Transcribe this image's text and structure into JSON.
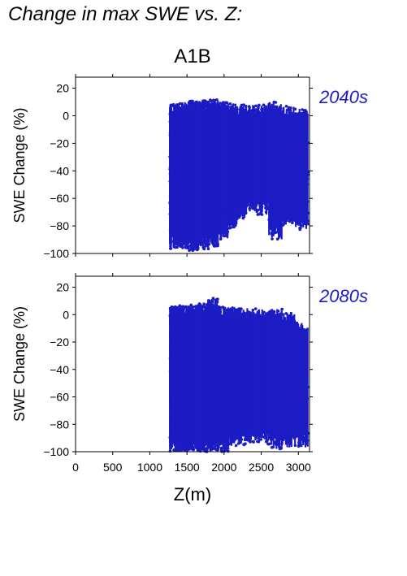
{
  "page": {
    "title": "Change in max SWE vs. Z:",
    "scenario": "A1B"
  },
  "colors": {
    "points": "#1c1cc4",
    "axes": "#000000",
    "period_label": "#1c1cc4"
  },
  "chart_data": [
    {
      "type": "scatter",
      "panel_label": "2040s",
      "ylabel": "SWE Change (%)",
      "xlabel": "",
      "xlim": [
        0,
        3150
      ],
      "ylim": [
        -100,
        28
      ],
      "yticks": [
        20,
        0,
        -20,
        -40,
        -60,
        -80,
        -100
      ],
      "ytick_labels": [
        "20",
        "0",
        "−20",
        "−40",
        "−60",
        "−80",
        "−100"
      ],
      "xticks": [
        0,
        500,
        1000,
        1500,
        2000,
        2500,
        3000
      ],
      "xtick_labels": [],
      "grid": false,
      "series": [
        {
          "columns": [
            {
              "x_range": [
                1270,
                1290
              ],
              "y_range": [
                -97,
                8
              ],
              "n": 70
            },
            {
              "x_range": [
                1310,
                1420
              ],
              "y_range": [
                -96,
                9
              ],
              "n": 260
            },
            {
              "x_range": [
                1420,
                1520
              ],
              "y_range": [
                -96,
                10
              ],
              "n": 260
            },
            {
              "x_range": [
                1520,
                1640
              ],
              "y_range": [
                -98,
                11
              ],
              "n": 320
            },
            {
              "x_range": [
                1640,
                1790
              ],
              "y_range": [
                -97,
                11
              ],
              "n": 360
            },
            {
              "x_range": [
                1790,
                1920
              ],
              "y_range": [
                -95,
                12
              ],
              "n": 300
            },
            {
              "x_range": [
                1920,
                2050
              ],
              "y_range": [
                -90,
                10
              ],
              "n": 200
            },
            {
              "x_range": [
                2050,
                2170
              ],
              "y_range": [
                -82,
                9
              ],
              "n": 140
            },
            {
              "x_range": [
                2170,
                2300
              ],
              "y_range": [
                -75,
                8
              ],
              "n": 120
            },
            {
              "x_range": [
                2300,
                2450
              ],
              "y_range": [
                -70,
                8
              ],
              "n": 110
            },
            {
              "x_range": [
                2450,
                2600
              ],
              "y_range": [
                -72,
                8
              ],
              "n": 110
            },
            {
              "x_range": [
                2600,
                2780
              ],
              "y_range": [
                -90,
                10
              ],
              "n": 120
            },
            {
              "x_range": [
                2780,
                2950
              ],
              "y_range": [
                -80,
                7
              ],
              "n": 110
            },
            {
              "x_range": [
                2950,
                3130
              ],
              "y_range": [
                -83,
                5
              ],
              "n": 110
            }
          ]
        }
      ]
    },
    {
      "type": "scatter",
      "panel_label": "2080s",
      "ylabel": "SWE Change (%)",
      "xlabel": "Z(m)",
      "xlim": [
        0,
        3150
      ],
      "ylim": [
        -100,
        28
      ],
      "yticks": [
        20,
        0,
        -20,
        -40,
        -60,
        -80,
        -100
      ],
      "ytick_labels": [
        "20",
        "0",
        "−20",
        "−40",
        "−60",
        "−80",
        "−100"
      ],
      "xticks": [
        0,
        500,
        1000,
        1500,
        2000,
        2500,
        3000
      ],
      "xtick_labels": [
        "0",
        "500",
        "1000",
        "1500",
        "2000",
        "2500",
        "3000"
      ],
      "grid": false,
      "series": [
        {
          "columns": [
            {
              "x_range": [
                1270,
                1300
              ],
              "y_range": [
                -100,
                7
              ],
              "n": 80
            },
            {
              "x_range": [
                1310,
                1420
              ],
              "y_range": [
                -100,
                7
              ],
              "n": 260
            },
            {
              "x_range": [
                1420,
                1520
              ],
              "y_range": [
                -100,
                7
              ],
              "n": 260
            },
            {
              "x_range": [
                1520,
                1640
              ],
              "y_range": [
                -100,
                7
              ],
              "n": 320
            },
            {
              "x_range": [
                1640,
                1790
              ],
              "y_range": [
                -100,
                8
              ],
              "n": 360
            },
            {
              "x_range": [
                1790,
                1920
              ],
              "y_range": [
                -100,
                12
              ],
              "n": 300
            },
            {
              "x_range": [
                1920,
                2060
              ],
              "y_range": [
                -100,
                7
              ],
              "n": 220
            },
            {
              "x_range": [
                2060,
                2170
              ],
              "y_range": [
                -97,
                6
              ],
              "n": 150
            },
            {
              "x_range": [
                2170,
                2300
              ],
              "y_range": [
                -95,
                5
              ],
              "n": 130
            },
            {
              "x_range": [
                2300,
                2450
              ],
              "y_range": [
                -93,
                5
              ],
              "n": 120
            },
            {
              "x_range": [
                2450,
                2600
              ],
              "y_range": [
                -95,
                4
              ],
              "n": 120
            },
            {
              "x_range": [
                2600,
                2780
              ],
              "y_range": [
                -98,
                5
              ],
              "n": 130
            },
            {
              "x_range": [
                2780,
                2950
              ],
              "y_range": [
                -97,
                2
              ],
              "n": 120
            },
            {
              "x_range": [
                2950,
                3130
              ],
              "y_range": [
                -97,
                -5
              ],
              "n": 120
            }
          ]
        }
      ]
    }
  ]
}
